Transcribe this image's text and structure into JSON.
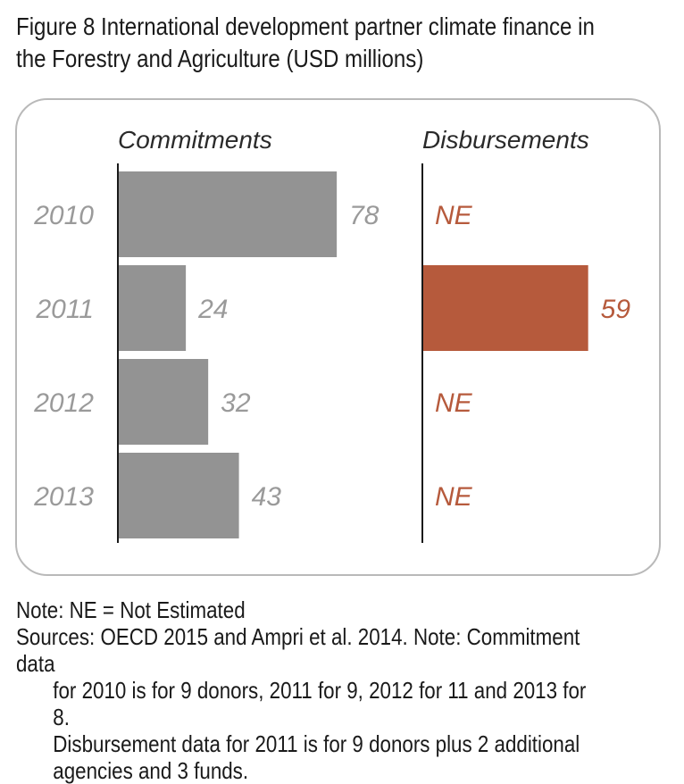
{
  "title": {
    "line1": "Figure 8  International development partner climate finance in",
    "line2": "the Forestry and Agriculture (USD millions)"
  },
  "chart_data": {
    "type": "bar",
    "orientation": "horizontal",
    "categories": [
      "2010",
      "2011",
      "2012",
      "2013"
    ],
    "panels": [
      {
        "name": "Commitments",
        "values": [
          78,
          24,
          32,
          43
        ],
        "labels": [
          "78",
          "24",
          "32",
          "43"
        ],
        "color": "#939393",
        "label_color": "#9a9a9a"
      },
      {
        "name": "Disbursements",
        "values": [
          null,
          59,
          null,
          null
        ],
        "labels": [
          "NE",
          "59",
          "NE",
          "NE"
        ],
        "color": "#b65a3c",
        "label_color": "#b65a3c"
      }
    ],
    "xlim": [
      0,
      80
    ]
  },
  "notes": {
    "note1": "Note: NE = Not Estimated",
    "sources_line1": "Sources: OECD 2015 and Ampri et al. 2014. Note: Commitment data",
    "sources_line2": "for 2010 is for 9 donors, 2011 for 9, 2012 for 11 and 2013 for 8.",
    "sources_line3": "Disbursement data for 2011 is for 9 donors plus 2 additional",
    "sources_line4": "agencies and 3 funds."
  }
}
